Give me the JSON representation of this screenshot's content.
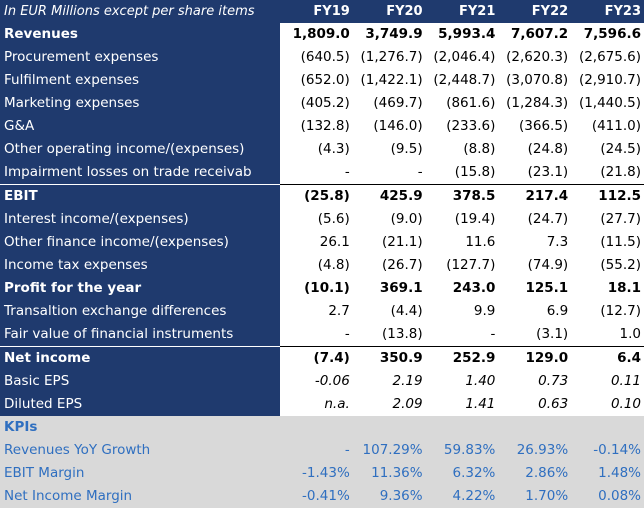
{
  "header": {
    "label": "In EUR Millions except per share items",
    "years": [
      "FY19",
      "FY20",
      "FY21",
      "FY22",
      "FY23"
    ]
  },
  "rows": [
    {
      "label": "Revenues",
      "values": [
        "1,809.0",
        "3,749.9",
        "5,993.4",
        "7,607.2",
        "7,596.6"
      ]
    },
    {
      "label": "Procurement expenses",
      "values": [
        "(640.5)",
        "(1,276.7)",
        "(2,046.4)",
        "(2,620.3)",
        "(2,675.6)"
      ]
    },
    {
      "label": "Fulfilment expenses",
      "values": [
        "(652.0)",
        "(1,422.1)",
        "(2,448.7)",
        "(3,070.8)",
        "(2,910.7)"
      ]
    },
    {
      "label": "Marketing expenses",
      "values": [
        "(405.2)",
        "(469.7)",
        "(861.6)",
        "(1,284.3)",
        "(1,440.5)"
      ]
    },
    {
      "label": "G&A",
      "values": [
        "(132.8)",
        "(146.0)",
        "(233.6)",
        "(366.5)",
        "(411.0)"
      ]
    },
    {
      "label": "Other operating income/(expenses)",
      "values": [
        "(4.3)",
        "(9.5)",
        "(8.8)",
        "(24.8)",
        "(24.5)"
      ]
    },
    {
      "label": "Impairment losses on trade receivab",
      "values": [
        "-",
        "-",
        "(15.8)",
        "(23.1)",
        "(21.8)"
      ]
    },
    {
      "label": "EBIT",
      "values": [
        "(25.8)",
        "425.9",
        "378.5",
        "217.4",
        "112.5"
      ]
    },
    {
      "label": "Interest income/(expenses)",
      "values": [
        "(5.6)",
        "(9.0)",
        "(19.4)",
        "(24.7)",
        "(27.7)"
      ]
    },
    {
      "label": "Other finance income/(expenses)",
      "values": [
        "26.1",
        "(21.1)",
        "11.6",
        "7.3",
        "(11.5)"
      ]
    },
    {
      "label": "Income tax expenses",
      "values": [
        "(4.8)",
        "(26.7)",
        "(127.7)",
        "(74.9)",
        "(55.2)"
      ]
    },
    {
      "label": "Profit for the year",
      "values": [
        "(10.1)",
        "369.1",
        "243.0",
        "125.1",
        "18.1"
      ]
    },
    {
      "label": "Transaltion exchange differences",
      "values": [
        "2.7",
        "(4.4)",
        "9.9",
        "6.9",
        "(12.7)"
      ]
    },
    {
      "label": "Fair value of financial instruments",
      "values": [
        "-",
        "(13.8)",
        "-",
        "(3.1)",
        "1.0"
      ]
    },
    {
      "label": "Net income",
      "values": [
        "(7.4)",
        "350.9",
        "252.9",
        "129.0",
        "6.4"
      ]
    },
    {
      "label": "Basic EPS",
      "values": [
        "-0.06",
        "2.19",
        "1.40",
        "0.73",
        "0.11"
      ]
    },
    {
      "label": "Diluted EPS",
      "values": [
        "n.a.",
        "2.09",
        "1.41",
        "0.63",
        "0.10"
      ]
    }
  ],
  "kpis": {
    "title": "KPIs",
    "rows": [
      {
        "label": "Revenues YoY Growth",
        "values": [
          "-",
          "107.29%",
          "59.83%",
          "26.93%",
          "-0.14%"
        ]
      },
      {
        "label": "EBIT Margin",
        "values": [
          "-1.43%",
          "11.36%",
          "6.32%",
          "2.86%",
          "1.48%"
        ]
      },
      {
        "label": "Net Income Margin",
        "values": [
          "-0.41%",
          "9.36%",
          "4.22%",
          "1.70%",
          "0.08%"
        ]
      }
    ]
  }
}
